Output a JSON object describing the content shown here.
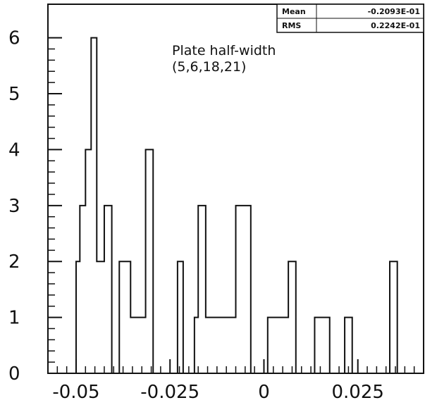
{
  "chart_data": {
    "type": "bar",
    "subtype": "histogram",
    "title": "",
    "xlabel": "",
    "ylabel": "",
    "xlim": [
      -0.0575,
      0.0425
    ],
    "ylim": [
      0,
      6.6
    ],
    "x_ticks": [
      -0.05,
      -0.025,
      0,
      0.025
    ],
    "x_tick_labels": [
      "-0.05",
      "-0.025",
      "0",
      "0.025"
    ],
    "y_ticks": [
      0,
      1,
      2,
      3,
      4,
      5,
      6
    ],
    "y_tick_labels": [
      "0",
      "1",
      "2",
      "3",
      "4",
      "5",
      "6"
    ],
    "bin_edges": [
      -0.05,
      -0.049,
      -0.0475,
      -0.046,
      -0.0445,
      -0.0425,
      -0.0405,
      -0.0385,
      -0.0355,
      -0.0315,
      -0.0295,
      -0.0275,
      -0.023,
      -0.0215,
      -0.0185,
      -0.0175,
      -0.0155,
      -0.0145,
      -0.0075,
      -0.0055,
      -0.0035,
      0.001,
      0.0055,
      0.0065,
      0.0085,
      0.0115,
      0.0135,
      0.0175,
      0.0215,
      0.0235,
      0.0245,
      0.0335,
      0.0355
    ],
    "counts": [
      2,
      3,
      4,
      6,
      2,
      3,
      0,
      2,
      1,
      4,
      0,
      0,
      2,
      0,
      1,
      3,
      1,
      1,
      3,
      3,
      0,
      1,
      1,
      2,
      0,
      0,
      1,
      0,
      1,
      0,
      0,
      2
    ],
    "annotation": {
      "line1": "Plate half-width",
      "line2": "(5,6,18,21)"
    },
    "stats_box": {
      "rows": [
        {
          "label": "Mean",
          "value": "-0.2093E-01"
        },
        {
          "label": "RMS",
          "value": "0.2242E-01"
        }
      ]
    },
    "grid": false,
    "legend": "none"
  }
}
